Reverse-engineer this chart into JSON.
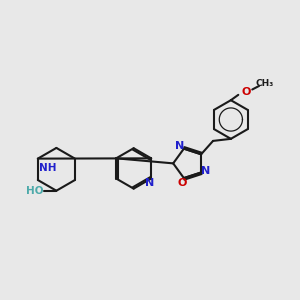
{
  "bg_color": "#e8e8e8",
  "bond_color": "#1a1a1a",
  "N_color": "#2020cc",
  "O_color": "#cc0000",
  "OH_color": "#4daaaa",
  "lw": 1.5,
  "xlim": [
    0,
    10
  ],
  "ylim": [
    2.5,
    8.5
  ]
}
